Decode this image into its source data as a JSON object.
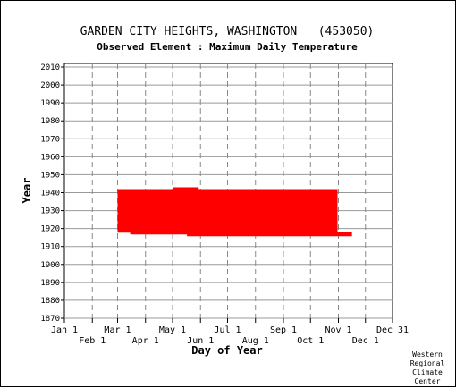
{
  "chart_data": {
    "type": "bar",
    "title": "GARDEN CITY HEIGHTS, WASHINGTON   (453050)",
    "subtitle": "Observed Element : Maximum Daily Temperature",
    "xlabel": "Day of Year",
    "ylabel": "Year",
    "credit": [
      "Western",
      "Regional",
      "Climate",
      "Center"
    ],
    "xlim": [
      1,
      365
    ],
    "ylim": [
      1870,
      2012
    ],
    "yticks": [
      2010,
      2000,
      1990,
      1980,
      1970,
      1960,
      1950,
      1940,
      1930,
      1920,
      1910,
      1900,
      1890,
      1880,
      1870
    ],
    "xticks_upper": [
      {
        "label": "Jan 1",
        "day": 1
      },
      {
        "label": "Mar 1",
        "day": 60
      },
      {
        "label": "May 1",
        "day": 121
      },
      {
        "label": "Jul 1",
        "day": 182
      },
      {
        "label": "Sep 1",
        "day": 244
      },
      {
        "label": "Nov 1",
        "day": 305
      },
      {
        "label": "Dec 31",
        "day": 365
      }
    ],
    "xticks_lower": [
      {
        "label": "Feb 1",
        "day": 32
      },
      {
        "label": "Apr 1",
        "day": 91
      },
      {
        "label": "Jun 1",
        "day": 152
      },
      {
        "label": "Aug 1",
        "day": 213
      },
      {
        "label": "Oct 1",
        "day": 274
      },
      {
        "label": "Dec 1",
        "day": 335
      }
    ],
    "grid": true,
    "series_color": "#ff0000",
    "series": [
      {
        "values": [
          {
            "year": 1918,
            "start": 60,
            "end": 304
          },
          {
            "year": 1919,
            "start": 60,
            "end": 304
          },
          {
            "year": 1920,
            "start": 60,
            "end": 304
          },
          {
            "year": 1921,
            "start": 60,
            "end": 304
          },
          {
            "year": 1922,
            "start": 60,
            "end": 304
          },
          {
            "year": 1923,
            "start": 60,
            "end": 304
          },
          {
            "year": 1924,
            "start": 60,
            "end": 304
          },
          {
            "year": 1925,
            "start": 60,
            "end": 304
          },
          {
            "year": 1926,
            "start": 60,
            "end": 304
          },
          {
            "year": 1927,
            "start": 60,
            "end": 304
          },
          {
            "year": 1928,
            "start": 60,
            "end": 304
          },
          {
            "year": 1929,
            "start": 60,
            "end": 304
          },
          {
            "year": 1930,
            "start": 60,
            "end": 304
          },
          {
            "year": 1931,
            "start": 60,
            "end": 304
          },
          {
            "year": 1932,
            "start": 60,
            "end": 304
          },
          {
            "year": 1933,
            "start": 60,
            "end": 304
          },
          {
            "year": 1934,
            "start": 60,
            "end": 304
          },
          {
            "year": 1935,
            "start": 60,
            "end": 304
          },
          {
            "year": 1936,
            "start": 60,
            "end": 304
          },
          {
            "year": 1937,
            "start": 60,
            "end": 304
          },
          {
            "year": 1938,
            "start": 60,
            "end": 304
          },
          {
            "year": 1939,
            "start": 60,
            "end": 304
          },
          {
            "year": 1940,
            "start": 60,
            "end": 304
          },
          {
            "year": 1941,
            "start": 60,
            "end": 304
          },
          {
            "year": 1942,
            "start": 121,
            "end": 150
          },
          {
            "year": 1917,
            "start": 74,
            "end": 320
          },
          {
            "year": 1916,
            "start": 137,
            "end": 320
          }
        ]
      }
    ]
  }
}
